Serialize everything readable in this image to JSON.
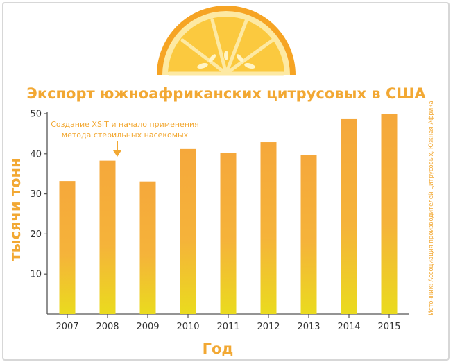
{
  "colors": {
    "accent": "#f2a833",
    "bar_top": "#f5a83b",
    "bar_bottom": "#eadb1e",
    "axis": "#555555",
    "frame": "#d7d7d7",
    "orange_peel": "#f6a424",
    "orange_flesh": "#fbd04c"
  },
  "decoration": {
    "logo": "orange-slice-icon"
  },
  "chart_data": {
    "type": "bar",
    "title": "Экспорт южноафриканских цитрусовых в США",
    "xlabel": "Год",
    "ylabel": "тысячи тонн",
    "categories": [
      "2007",
      "2008",
      "2009",
      "2010",
      "2011",
      "2012",
      "2013",
      "2014",
      "2015"
    ],
    "values": [
      33.2,
      38.3,
      33.1,
      41.2,
      40.3,
      42.9,
      39.7,
      48.8,
      50.0
    ],
    "ylim": [
      0,
      50
    ],
    "yticks": [
      10,
      20,
      30,
      40,
      50
    ],
    "grid": false,
    "annotation": {
      "category": "2008",
      "lines": [
        "Создание XSIT и начало применения",
        "метода стерильных насекомых"
      ]
    },
    "source": "Источник: Ассоциация производителей цитрусовых, Южная Африка"
  }
}
